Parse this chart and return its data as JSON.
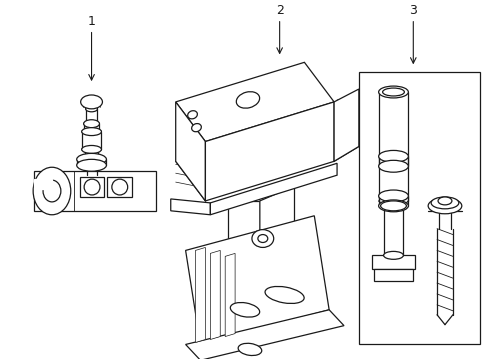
{
  "bg_color": "#ffffff",
  "line_color": "#1a1a1a",
  "lw": 0.9,
  "fig_w": 4.9,
  "fig_h": 3.6,
  "dpi": 100
}
